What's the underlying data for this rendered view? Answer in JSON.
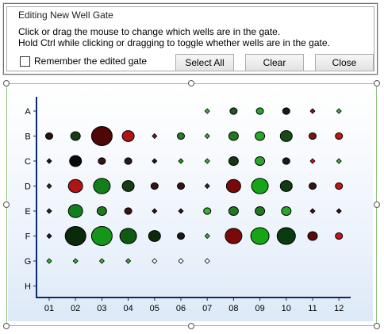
{
  "dialog": {
    "title": "Editing New Well Gate",
    "instruction_1": "Click or drag the mouse to change which wells are in the gate.",
    "instruction_2": "Hold Ctrl while clicking or dragging to toggle whether wells are in the gate.",
    "remember_label": "Remember the edited gate",
    "remember_checked": false,
    "select_all_label": "Select All",
    "clear_label": "Clear",
    "close_label": "Close"
  },
  "plate": {
    "rows": [
      "A",
      "B",
      "C",
      "D",
      "E",
      "F",
      "G",
      "H"
    ],
    "columns": [
      "01",
      "02",
      "03",
      "04",
      "05",
      "06",
      "07",
      "08",
      "09",
      "10",
      "11",
      "12"
    ],
    "colors": {
      "green": "#12a512",
      "dark_green": "#0a3a0a",
      "dark_red": "#5c0606",
      "red": "#c41414",
      "empty": "#ffffff",
      "frame": "#8fbf7f",
      "axis": "#0b2a66"
    },
    "wells": [
      {
        "row": "A",
        "col": "07",
        "size": 1,
        "color": "#36b336"
      },
      {
        "row": "A",
        "col": "08",
        "size": 2,
        "color": "#1d5a1d"
      },
      {
        "row": "A",
        "col": "09",
        "size": 2,
        "color": "#2aa62a"
      },
      {
        "row": "A",
        "col": "10",
        "size": 2,
        "color": "#1a1a1a"
      },
      {
        "row": "A",
        "col": "11",
        "size": 1,
        "color": "#8a1414"
      },
      {
        "row": "A",
        "col": "12",
        "size": 1,
        "color": "#36b336"
      },
      {
        "row": "B",
        "col": "01",
        "size": 2,
        "color": "#2a1212"
      },
      {
        "row": "B",
        "col": "02",
        "size": 3,
        "color": "#173d17"
      },
      {
        "row": "B",
        "col": "03",
        "size": 8,
        "color": "#4f0606"
      },
      {
        "row": "B",
        "col": "04",
        "size": 4,
        "color": "#b01414"
      },
      {
        "row": "B",
        "col": "05",
        "size": 1,
        "color": "#7a1a1a"
      },
      {
        "row": "B",
        "col": "06",
        "size": 2,
        "color": "#2a7a2a"
      },
      {
        "row": "B",
        "col": "07",
        "size": 1,
        "color": "#36b336"
      },
      {
        "row": "B",
        "col": "08",
        "size": 3,
        "color": "#1f7a1f"
      },
      {
        "row": "B",
        "col": "09",
        "size": 3,
        "color": "#2aa62a"
      },
      {
        "row": "B",
        "col": "10",
        "size": 4,
        "color": "#174a17"
      },
      {
        "row": "B",
        "col": "11",
        "size": 2,
        "color": "#7a1414"
      },
      {
        "row": "B",
        "col": "12",
        "size": 2,
        "color": "#c41414"
      },
      {
        "row": "C",
        "col": "01",
        "size": 1,
        "color": "#1a1a1a"
      },
      {
        "row": "C",
        "col": "02",
        "size": 4,
        "color": "#0a0a0a"
      },
      {
        "row": "C",
        "col": "03",
        "size": 2,
        "color": "#3a1212"
      },
      {
        "row": "C",
        "col": "04",
        "size": 2,
        "color": "#2a1a1a"
      },
      {
        "row": "C",
        "col": "05",
        "size": 1,
        "color": "#1a1a1a"
      },
      {
        "row": "C",
        "col": "06",
        "size": 1,
        "color": "#12a512"
      },
      {
        "row": "C",
        "col": "07",
        "size": 1,
        "color": "#36b336"
      },
      {
        "row": "C",
        "col": "08",
        "size": 3,
        "color": "#123a12"
      },
      {
        "row": "C",
        "col": "09",
        "size": 3,
        "color": "#2aa62a"
      },
      {
        "row": "C",
        "col": "10",
        "size": 2,
        "color": "#1a1a1a"
      },
      {
        "row": "C",
        "col": "11",
        "size": 1,
        "color": "#c41414"
      },
      {
        "row": "C",
        "col": "12",
        "size": 1,
        "color": "#36b336"
      },
      {
        "row": "D",
        "col": "01",
        "size": 1,
        "color": "#1a3a1a"
      },
      {
        "row": "D",
        "col": "02",
        "size": 5,
        "color": "#b01414"
      },
      {
        "row": "D",
        "col": "03",
        "size": 6,
        "color": "#12801a"
      },
      {
        "row": "D",
        "col": "04",
        "size": 4,
        "color": "#173d17"
      },
      {
        "row": "D",
        "col": "05",
        "size": 2,
        "color": "#3a1212"
      },
      {
        "row": "D",
        "col": "06",
        "size": 2,
        "color": "#3a1212"
      },
      {
        "row": "D",
        "col": "07",
        "size": 1,
        "color": "#1a3a1a"
      },
      {
        "row": "D",
        "col": "08",
        "size": 5,
        "color": "#7a0a0a"
      },
      {
        "row": "D",
        "col": "09",
        "size": 6,
        "color": "#16a516"
      },
      {
        "row": "D",
        "col": "10",
        "size": 4,
        "color": "#123a12"
      },
      {
        "row": "D",
        "col": "11",
        "size": 2,
        "color": "#3a1212"
      },
      {
        "row": "D",
        "col": "12",
        "size": 2,
        "color": "#c41414"
      },
      {
        "row": "E",
        "col": "01",
        "size": 1,
        "color": "#1a2a1a"
      },
      {
        "row": "E",
        "col": "02",
        "size": 5,
        "color": "#12801a"
      },
      {
        "row": "E",
        "col": "03",
        "size": 3,
        "color": "#1f7a1f"
      },
      {
        "row": "E",
        "col": "04",
        "size": 2,
        "color": "#3a1212"
      },
      {
        "row": "E",
        "col": "05",
        "size": 1,
        "color": "#3a1212"
      },
      {
        "row": "E",
        "col": "06",
        "size": 1,
        "color": "#3a1212"
      },
      {
        "row": "E",
        "col": "07",
        "size": 2,
        "color": "#36b336"
      },
      {
        "row": "E",
        "col": "08",
        "size": 3,
        "color": "#1f7a1f"
      },
      {
        "row": "E",
        "col": "09",
        "size": 3,
        "color": "#1f7a1f"
      },
      {
        "row": "E",
        "col": "10",
        "size": 3,
        "color": "#2aa62a"
      },
      {
        "row": "E",
        "col": "11",
        "size": 1,
        "color": "#3a1212"
      },
      {
        "row": "E",
        "col": "12",
        "size": 1,
        "color": "#3a1212"
      },
      {
        "row": "F",
        "col": "01",
        "size": 1,
        "color": "#1a1a1a"
      },
      {
        "row": "F",
        "col": "02",
        "size": 8,
        "color": "#0a2a0a"
      },
      {
        "row": "F",
        "col": "03",
        "size": 8,
        "color": "#16951a"
      },
      {
        "row": "F",
        "col": "04",
        "size": 6,
        "color": "#0f5a12"
      },
      {
        "row": "F",
        "col": "05",
        "size": 4,
        "color": "#0a2a0a"
      },
      {
        "row": "F",
        "col": "06",
        "size": 2,
        "color": "#1a1a1a"
      },
      {
        "row": "F",
        "col": "07",
        "size": 1,
        "color": "#36b336"
      },
      {
        "row": "F",
        "col": "08",
        "size": 6,
        "color": "#7a0a0a"
      },
      {
        "row": "F",
        "col": "09",
        "size": 7,
        "color": "#16a516"
      },
      {
        "row": "F",
        "col": "10",
        "size": 7,
        "color": "#0a3a12"
      },
      {
        "row": "F",
        "col": "11",
        "size": 3,
        "color": "#5a0a0a"
      },
      {
        "row": "F",
        "col": "12",
        "size": 2,
        "color": "#c41414"
      },
      {
        "row": "G",
        "col": "01",
        "size": 1,
        "color": "#36b336"
      },
      {
        "row": "G",
        "col": "02",
        "size": 1,
        "color": "#36b336"
      },
      {
        "row": "G",
        "col": "03",
        "size": 1,
        "color": "#36b336"
      },
      {
        "row": "G",
        "col": "04",
        "size": 1,
        "color": "#36b336"
      },
      {
        "row": "G",
        "col": "05",
        "size": 1,
        "color": "#ffffff"
      },
      {
        "row": "G",
        "col": "06",
        "size": 1,
        "color": "#ffffff"
      },
      {
        "row": "G",
        "col": "07",
        "size": 1,
        "color": "#ffffff"
      }
    ]
  }
}
